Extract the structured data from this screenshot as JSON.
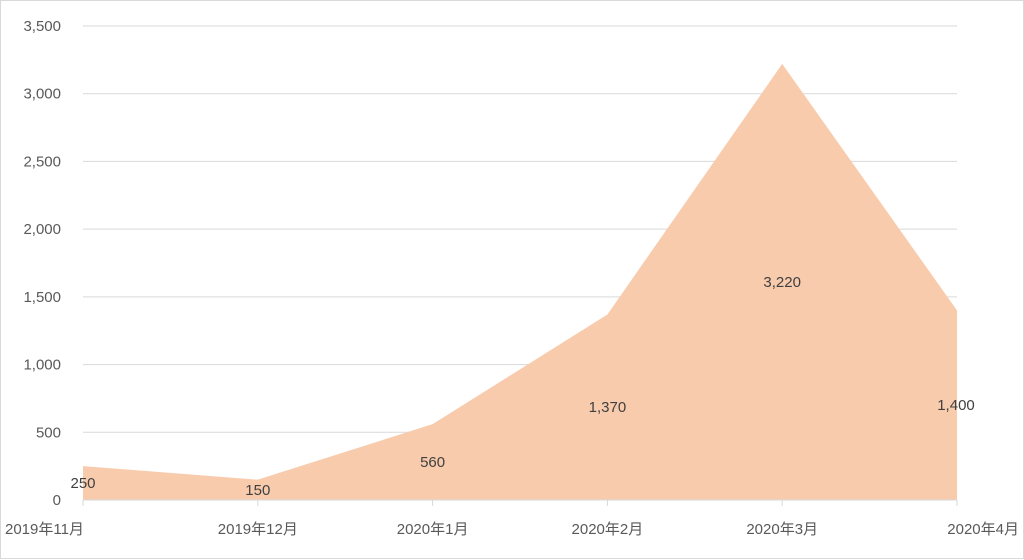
{
  "chart_data": {
    "type": "area",
    "categories": [
      "2019年11月",
      "2019年12月",
      "2020年1月",
      "2020年2月",
      "2020年3月",
      "2020年4月"
    ],
    "values": [
      250,
      150,
      560,
      1370,
      3220,
      1400
    ],
    "data_labels": [
      "250",
      "150",
      "560",
      "1,370",
      "3,220",
      "1,400"
    ],
    "y_ticks": [
      "0",
      "500",
      "1,000",
      "1,500",
      "2,000",
      "2,500",
      "3,000",
      "3,500"
    ],
    "ylim": [
      0,
      3500
    ],
    "title": "",
    "xlabel": "",
    "ylabel": "",
    "grid": true,
    "legend": "none",
    "colors": {
      "area_fill": "#f8cbad",
      "gridline": "#d9d9d9",
      "axis_line": "#d9d9d9",
      "tick_text": "#595959",
      "data_label_text": "#404040"
    }
  }
}
